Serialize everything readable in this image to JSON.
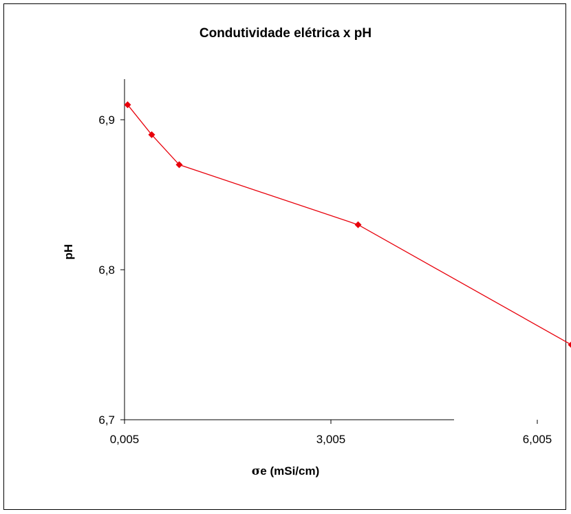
{
  "chart_data": {
    "type": "line",
    "title": "Condutividade elétrica x pH",
    "xlabel_symbol": "σ",
    "xlabel_rest": "e (mSi/cm)",
    "ylabel": "pH",
    "xlim": [
      0.005,
      7.0
    ],
    "ylim": [
      6.7,
      6.95
    ],
    "xticks": [
      0.005,
      3.005,
      6.005
    ],
    "xtick_labels": [
      "0,005",
      "3,005",
      "6,005"
    ],
    "yticks": [
      6.7,
      6.8,
      6.9
    ],
    "ytick_labels": [
      "6,7",
      "6,8",
      "6,9"
    ],
    "grid": false,
    "legend": "none",
    "series": [
      {
        "color": "#e8000b",
        "marker": "diamond",
        "x": [
          0.05,
          0.4,
          0.8,
          3.4,
          6.5
        ],
        "y": [
          6.91,
          6.89,
          6.87,
          6.83,
          6.75
        ]
      }
    ]
  }
}
